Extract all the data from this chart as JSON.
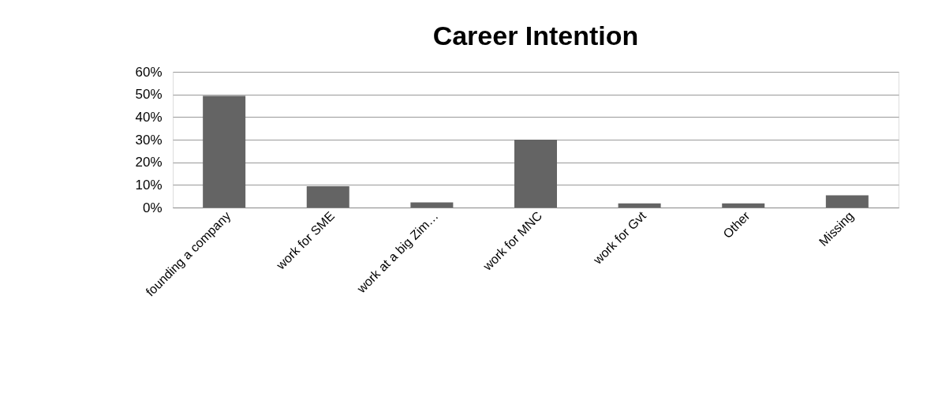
{
  "chart_data": {
    "type": "bar",
    "title": "Career Intention",
    "categories": [
      "founding a company",
      "work for SME",
      "work at a big Zim…",
      "work for MNC",
      "work for Gvt",
      "Other",
      "Missing"
    ],
    "values": [
      49.4,
      9.4,
      2.3,
      30,
      1.8,
      1.8,
      5.4
    ],
    "color": "#646464",
    "ylim": [
      0,
      60
    ],
    "yticks": [
      {
        "value": 0,
        "label": "0%"
      },
      {
        "value": 10,
        "label": "10%"
      },
      {
        "value": 20,
        "label": "20%"
      },
      {
        "value": 30,
        "label": "30%"
      },
      {
        "value": 40,
        "label": "40%"
      },
      {
        "value": 50,
        "label": "50%"
      },
      {
        "value": 60,
        "label": "60%"
      }
    ],
    "grid": "y"
  }
}
